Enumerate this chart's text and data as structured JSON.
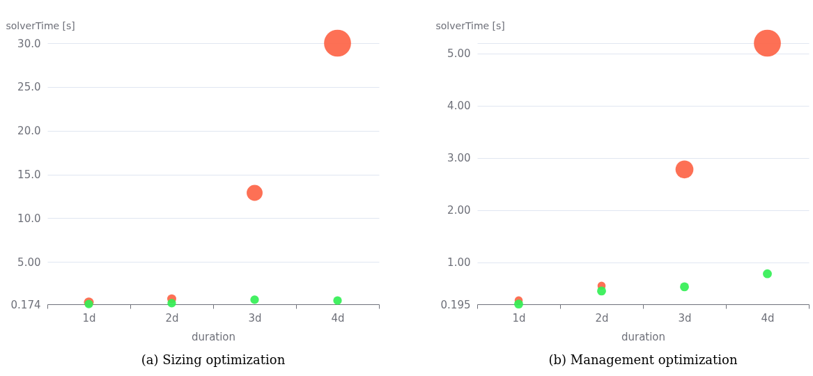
{
  "chart_data": [
    {
      "type": "bubble",
      "title": "(a) Sizing optimization",
      "xlabel": "duration",
      "ylabel": "solverTime [s]",
      "categories": [
        "1d",
        "2d",
        "3d",
        "4d"
      ],
      "ylim": [
        0.174,
        30.0
      ],
      "yticks": [
        0.174,
        {
          "value": 5,
          "label": "5.00"
        },
        {
          "value": 10,
          "label": "10.0"
        },
        {
          "value": 15,
          "label": "15.0"
        },
        {
          "value": 20,
          "label": "20.0"
        },
        {
          "value": 25,
          "label": "25.0"
        },
        {
          "value": 30,
          "label": "30.0"
        }
      ],
      "grid": "y",
      "series": [
        {
          "color": "#fd6446",
          "values": [
            0.4,
            0.8,
            12.9,
            30.0
          ],
          "sizes": [
            0.13,
            0.11,
            0.35,
            1
          ]
        },
        {
          "color": "#33ef55",
          "values": [
            0.2,
            0.3,
            0.7,
            0.6
          ],
          "sizes": [
            0.1,
            0.1,
            0.1,
            0.1
          ]
        }
      ]
    },
    {
      "type": "bubble",
      "title": "(b) Management optimization",
      "xlabel": "duration",
      "ylabel": "solverTime [s]",
      "categories": [
        "1d",
        "2d",
        "3d",
        "4d"
      ],
      "ylim": [
        0.195,
        5.2
      ],
      "yticks": [
        0.195,
        {
          "value": 1,
          "label": "1.00"
        },
        {
          "value": 2,
          "label": "2.00"
        },
        {
          "value": 3,
          "label": "3.00"
        },
        {
          "value": 4,
          "label": "4.00"
        },
        {
          "value": 5,
          "label": "5.00"
        },
        {
          "value": 5.2,
          "label": null
        }
      ],
      "grid": "y",
      "series": [
        {
          "color": "#fd6446",
          "values": [
            0.27,
            0.55,
            2.78,
            5.2
          ],
          "sizes": [
            0.09,
            0.09,
            0.44,
            1
          ]
        },
        {
          "color": "#33ef55",
          "values": [
            0.2,
            0.45,
            0.53,
            0.78
          ],
          "sizes": [
            0.11,
            0.11,
            0.11,
            0.11
          ]
        }
      ]
    }
  ]
}
